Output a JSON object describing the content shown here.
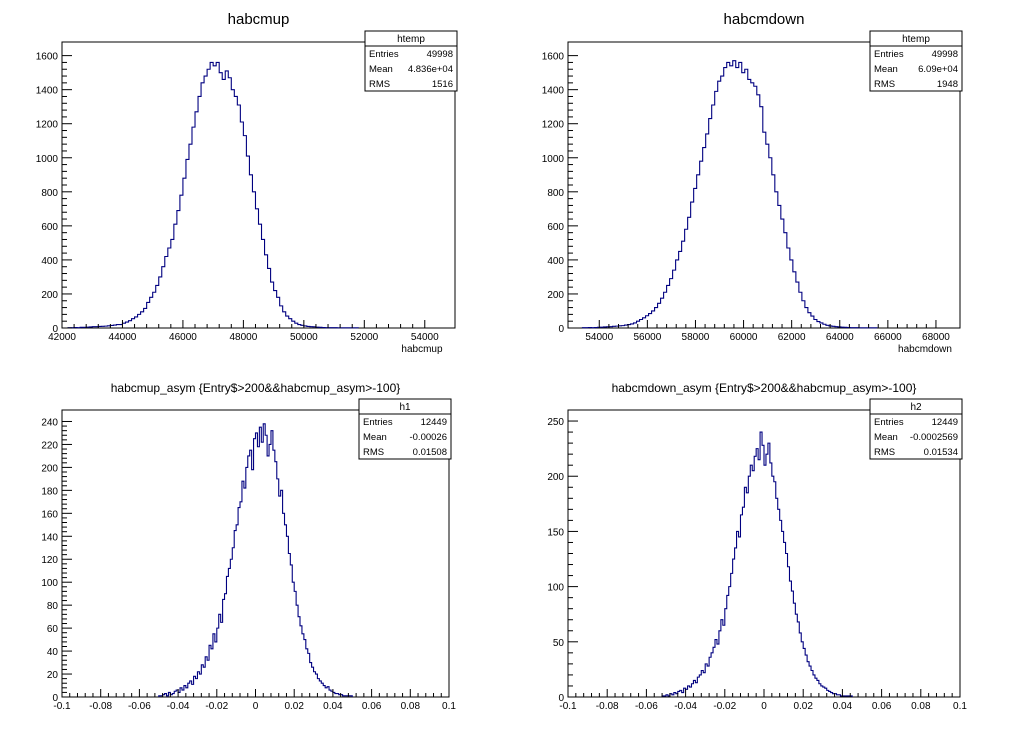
{
  "chart_data": [
    {
      "type": "bar",
      "title": "habcmup",
      "xlabel": "habcmup",
      "ylabel": "",
      "xlim": [
        42000,
        55000
      ],
      "ylim": [
        0,
        1680
      ],
      "xticks": [
        42000,
        44000,
        46000,
        48000,
        50000,
        52000,
        54000
      ],
      "xtick_labels": [
        "42000",
        "44000",
        "46000",
        "48000",
        "50000",
        "52000",
        "54000"
      ],
      "yticks": [
        0,
        200,
        400,
        600,
        800,
        1000,
        1200,
        1400,
        1600
      ],
      "ytick_labels": [
        "0",
        "200",
        "400",
        "600",
        "800",
        "1000",
        "1200",
        "1400",
        "1600"
      ],
      "bin_start": 42200,
      "bin_width": 100,
      "values": [
        2,
        2,
        3,
        2,
        4,
        4,
        5,
        6,
        8,
        8,
        9,
        10,
        11,
        13,
        15,
        17,
        20,
        20,
        28,
        35,
        43,
        55,
        65,
        80,
        95,
        115,
        150,
        180,
        210,
        250,
        300,
        360,
        420,
        470,
        520,
        610,
        690,
        780,
        880,
        990,
        1080,
        1180,
        1270,
        1360,
        1440,
        1480,
        1520,
        1560,
        1540,
        1560,
        1500,
        1460,
        1510,
        1470,
        1400,
        1360,
        1310,
        1210,
        1130,
        1010,
        900,
        800,
        700,
        610,
        520,
        430,
        350,
        270,
        220,
        180,
        130,
        95,
        70,
        55,
        40,
        28,
        20,
        16,
        12,
        9,
        8,
        7,
        5,
        4,
        3,
        2,
        2,
        2,
        2,
        1,
        1,
        1,
        1,
        1,
        1,
        1
      ],
      "stats": {
        "name": "htemp",
        "rows": [
          {
            "label": "Entries",
            "value": "49998"
          },
          {
            "label": "Mean",
            "value": "4.836e+04"
          },
          {
            "label": "RMS",
            "value": "1516"
          }
        ]
      },
      "line_color": "#000080",
      "grid": false
    },
    {
      "type": "bar",
      "title": "habcmdown",
      "xlabel": "habcmdown",
      "ylabel": "",
      "xlim": [
        52700,
        69000
      ],
      "ylim": [
        0,
        1680
      ],
      "xticks": [
        54000,
        56000,
        58000,
        60000,
        62000,
        64000,
        66000,
        68000
      ],
      "xtick_labels": [
        "54000",
        "56000",
        "58000",
        "60000",
        "62000",
        "64000",
        "66000",
        "68000"
      ],
      "yticks": [
        0,
        200,
        400,
        600,
        800,
        1000,
        1200,
        1400,
        1600
      ],
      "ytick_labels": [
        "0",
        "200",
        "400",
        "600",
        "800",
        "1000",
        "1200",
        "1400",
        "1600"
      ],
      "bin_start": 53300,
      "bin_width": 125,
      "values": [
        2,
        2,
        3,
        2,
        3,
        4,
        5,
        6,
        7,
        8,
        10,
        11,
        13,
        14,
        17,
        20,
        24,
        30,
        40,
        50,
        60,
        72,
        85,
        100,
        120,
        145,
        175,
        210,
        250,
        290,
        340,
        400,
        450,
        510,
        580,
        650,
        740,
        820,
        900,
        980,
        1060,
        1140,
        1230,
        1310,
        1390,
        1450,
        1480,
        1530,
        1560,
        1540,
        1570,
        1530,
        1560,
        1500,
        1520,
        1460,
        1440,
        1420,
        1370,
        1300,
        1150,
        1080,
        1000,
        900,
        800,
        720,
        640,
        560,
        470,
        400,
        330,
        270,
        210,
        160,
        120,
        90,
        70,
        50,
        38,
        30,
        22,
        16,
        12,
        10,
        8,
        6,
        5,
        4,
        3,
        2,
        2,
        2,
        1,
        1,
        1,
        1,
        1,
        1
      ],
      "stats": {
        "name": "htemp",
        "rows": [
          {
            "label": "Entries",
            "value": "49998"
          },
          {
            "label": "Mean",
            "value": "6.09e+04"
          },
          {
            "label": "RMS",
            "value": "1948"
          }
        ]
      },
      "line_color": "#000080",
      "grid": false
    },
    {
      "type": "bar",
      "title": "habcmup_asym {Entry$>200&&habcmup_asym>-100}",
      "xlabel": "",
      "ylabel": "",
      "xlim": [
        -0.1,
        0.1
      ],
      "ylim": [
        0,
        250
      ],
      "xticks": [
        -0.1,
        -0.08,
        -0.06,
        -0.04,
        -0.02,
        0,
        0.02,
        0.04,
        0.06,
        0.08,
        0.1
      ],
      "xtick_labels": [
        "-0.1",
        "-0.08",
        "-0.06",
        "-0.04",
        "-0.02",
        "0",
        "0.02",
        "0.04",
        "0.06",
        "0.08",
        "0.1"
      ],
      "yticks": [
        0,
        20,
        40,
        60,
        80,
        100,
        120,
        140,
        160,
        180,
        200,
        220,
        240
      ],
      "ytick_labels": [
        "0",
        "20",
        "40",
        "60",
        "80",
        "100",
        "120",
        "140",
        "160",
        "180",
        "200",
        "220",
        "240"
      ],
      "bin_start": -0.05,
      "bin_width": 0.001,
      "values": [
        1,
        1,
        2,
        3,
        1,
        4,
        2,
        3,
        5,
        6,
        4,
        8,
        6,
        10,
        8,
        12,
        14,
        11,
        18,
        16,
        22,
        20,
        28,
        26,
        35,
        32,
        45,
        42,
        55,
        48,
        60,
        72,
        65,
        85,
        90,
        105,
        112,
        120,
        130,
        145,
        150,
        165,
        170,
        188,
        182,
        200,
        210,
        215,
        198,
        225,
        230,
        218,
        235,
        222,
        238,
        228,
        210,
        220,
        232,
        215,
        205,
        190,
        175,
        180,
        160,
        150,
        140,
        125,
        115,
        100,
        92,
        80,
        70,
        62,
        55,
        50,
        42,
        38,
        30,
        26,
        22,
        20,
        16,
        14,
        12,
        10,
        8,
        9,
        6,
        5,
        4,
        3,
        3,
        2,
        2,
        1,
        1,
        1,
        1,
        1
      ],
      "stats": {
        "name": "h1",
        "rows": [
          {
            "label": "Entries",
            "value": "12449"
          },
          {
            "label": "Mean",
            "value": "-0.00026"
          },
          {
            "label": "RMS",
            "value": "0.01508"
          }
        ]
      },
      "line_color": "#000080",
      "grid": false
    },
    {
      "type": "bar",
      "title": "habcmdown_asym {Entry$>200&&habcmup_asym>-100}",
      "xlabel": "",
      "ylabel": "",
      "xlim": [
        -0.1,
        0.1
      ],
      "ylim": [
        0,
        260
      ],
      "xticks": [
        -0.1,
        -0.08,
        -0.06,
        -0.04,
        -0.02,
        0,
        0.02,
        0.04,
        0.06,
        0.08,
        0.1
      ],
      "xtick_labels": [
        "-0.1",
        "-0.08",
        "-0.06",
        "-0.04",
        "-0.02",
        "0",
        "0.02",
        "0.04",
        "0.06",
        "0.08",
        "0.1"
      ],
      "yticks": [
        0,
        50,
        100,
        150,
        200,
        250
      ],
      "ytick_labels": [
        "0",
        "50",
        "100",
        "150",
        "200",
        "250"
      ],
      "bin_start": -0.052,
      "bin_width": 0.001,
      "values": [
        1,
        1,
        2,
        1,
        3,
        2,
        4,
        3,
        5,
        6,
        4,
        8,
        7,
        10,
        9,
        12,
        15,
        13,
        18,
        20,
        24,
        22,
        30,
        28,
        36,
        40,
        45,
        52,
        48,
        60,
        70,
        65,
        80,
        92,
        100,
        112,
        125,
        135,
        150,
        145,
        165,
        172,
        190,
        185,
        200,
        210,
        205,
        218,
        225,
        215,
        240,
        228,
        210,
        220,
        230,
        212,
        200,
        195,
        180,
        170,
        160,
        150,
        140,
        130,
        118,
        105,
        96,
        85,
        75,
        68,
        58,
        50,
        44,
        38,
        32,
        28,
        24,
        20,
        17,
        15,
        12,
        10,
        9,
        8,
        6,
        5,
        4,
        3,
        3,
        2,
        2,
        1,
        1,
        1,
        1,
        1,
        1
      ],
      "stats": {
        "name": "h2",
        "rows": [
          {
            "label": "Entries",
            "value": "12449"
          },
          {
            "label": "Mean",
            "value": "-0.0002569"
          },
          {
            "label": "RMS",
            "value": "0.01534"
          }
        ]
      },
      "line_color": "#000080",
      "grid": false
    }
  ]
}
